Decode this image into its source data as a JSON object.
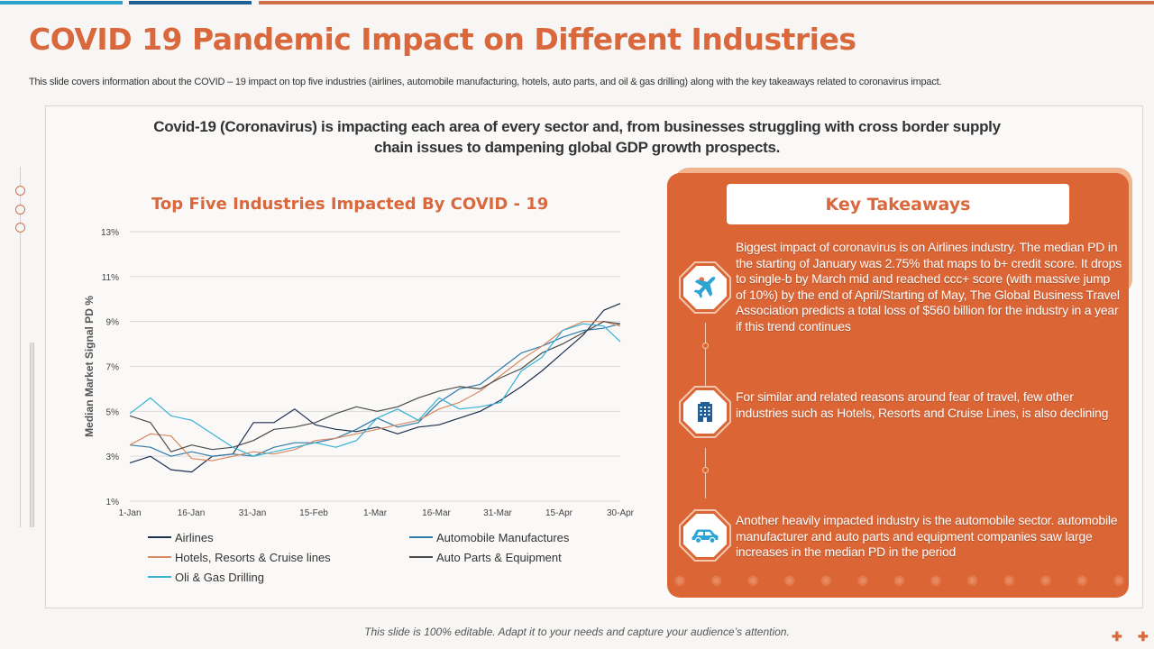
{
  "slide": {
    "title": "COVID 19 Pandemic Impact on Different Industries",
    "subtitle": "This slide covers information about the COVID – 19 impact on top five industries (airlines, automobile manufacturing, hotels, auto parts, and oil & gas drilling) along with the key takeaways related to coronavirus impact.",
    "headline": "Covid-19 (Coronavirus) is impacting each area of every sector and, from businesses struggling with cross border supply chain issues to dampening global GDP growth prospects.",
    "footer": "This slide is 100% editable. Adapt it to your needs and capture your audience’s attention.",
    "colors": {
      "accent": "#d9683d",
      "panel": "#dc6535",
      "bar_light_blue": "#2aa3c9",
      "bar_dark_blue": "#1f5f95"
    }
  },
  "key_takeaways": {
    "header": "Key Takeaways",
    "items": [
      {
        "icon": "airplane-icon",
        "text": "Biggest impact of coronavirus is on Airlines industry. The median PD in the starting of January was 2.75% that maps to b+ credit score. It drops to single-b by March mid and reached ccc+ score (with massive jump of 10%) by the end of April/Starting of May, The Global Business Travel Association predicts a total loss of $560 billion for the industry in a year if this trend continues"
      },
      {
        "icon": "hotel-building-icon",
        "text": "For similar and related reasons around fear of travel, few other industries such as Hotels, Resorts and Cruise Lines, is also declining"
      },
      {
        "icon": "car-icon",
        "text": "Another heavily impacted industry is the automobile sector. automobile manufacturer and auto parts and equipment companies saw large increases in the median PD in the period"
      }
    ]
  },
  "chart_data": {
    "type": "line",
    "title": "Top Five Industries Impacted By COVID - 19",
    "xlabel": "",
    "ylabel": "Median Market Signal PD %",
    "x_ticks": [
      "1-Jan",
      "16-Jan",
      "31-Jan",
      "15-Feb",
      "1-Mar",
      "16-Mar",
      "31-Mar",
      "15-Apr",
      "30-Apr"
    ],
    "y_ticks": [
      "1%",
      "3%",
      "5%",
      "7%",
      "9%",
      "11%",
      "13%"
    ],
    "ylim": [
      1,
      13
    ],
    "x_days": [
      0,
      5,
      10,
      15,
      20,
      25,
      30,
      35,
      40,
      45,
      50,
      55,
      60,
      65,
      70,
      75,
      80,
      85,
      90,
      95,
      100,
      105,
      110,
      115,
      119
    ],
    "grid": true,
    "legend_position": "bottom",
    "series": [
      {
        "name": "Airlines",
        "color": "#1c2f4f",
        "values": [
          2.7,
          3.0,
          2.4,
          2.3,
          3.0,
          3.1,
          4.5,
          4.5,
          5.1,
          4.4,
          4.2,
          4.1,
          4.3,
          4.0,
          4.3,
          4.4,
          4.7,
          5.0,
          5.5,
          6.1,
          6.8,
          7.6,
          8.4,
          9.5,
          9.8
        ]
      },
      {
        "name": "Automobile Manufactures",
        "color": "#2f7aab",
        "values": [
          3.5,
          3.4,
          3.0,
          3.2,
          3.0,
          3.1,
          3.0,
          3.4,
          3.6,
          3.6,
          3.8,
          4.2,
          4.7,
          4.3,
          4.5,
          5.4,
          6.0,
          6.2,
          6.9,
          7.6,
          7.9,
          8.3,
          8.6,
          8.7,
          8.9
        ]
      },
      {
        "name": "Hotels, Resorts & Cruise lines",
        "color": "#d9895f",
        "values": [
          3.5,
          4.0,
          3.9,
          2.9,
          2.8,
          3.0,
          3.2,
          3.1,
          3.3,
          3.7,
          3.8,
          4.0,
          4.2,
          4.4,
          4.6,
          5.1,
          5.4,
          5.9,
          6.6,
          7.3,
          7.9,
          8.6,
          9.0,
          9.0,
          8.8
        ]
      },
      {
        "name": "Auto Parts & Equipment",
        "color": "#4a4a4a",
        "values": [
          4.8,
          4.5,
          3.2,
          3.5,
          3.3,
          3.4,
          3.7,
          4.2,
          4.3,
          4.5,
          4.9,
          5.2,
          5.0,
          5.2,
          5.6,
          5.9,
          6.1,
          6.0,
          6.5,
          6.9,
          7.6,
          8.0,
          8.5,
          9.0,
          8.9
        ]
      },
      {
        "name": "Oli & Gas Drilling",
        "color": "#36b0d6",
        "values": [
          4.9,
          5.6,
          4.8,
          4.6,
          4.0,
          3.4,
          3.0,
          3.2,
          3.4,
          3.6,
          3.4,
          3.7,
          4.7,
          5.1,
          4.6,
          5.6,
          5.1,
          5.2,
          5.4,
          6.8,
          7.4,
          8.6,
          8.9,
          8.8,
          8.1
        ]
      }
    ]
  }
}
